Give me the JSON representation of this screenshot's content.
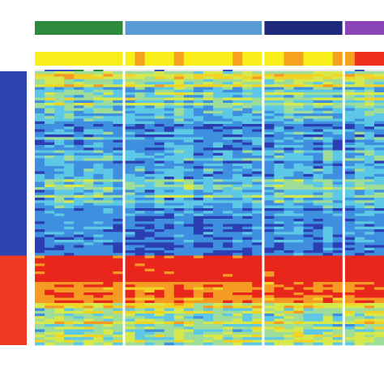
{
  "chart_data": {
    "type": "heatmap",
    "title": "",
    "xlabel": "",
    "ylabel": "",
    "legend": false,
    "colormap": [
      "#2b3fb3",
      "#3f8fe0",
      "#5cc8e6",
      "#9edc9a",
      "#d6e84a",
      "#f2d224",
      "#f59a22",
      "#e8261c"
    ],
    "value_range": [
      0,
      1
    ],
    "column_groups": [
      {
        "color": "#2e8a3c",
        "columns": 9
      },
      {
        "color": "#5b9bd5",
        "columns": 14
      },
      {
        "color": "#1f2a7a",
        "columns": 8
      },
      {
        "color": "#8a45b8",
        "columns": 4
      }
    ],
    "annotation_tracks": [
      {
        "values": [
          "#2e8a3c",
          "#2e8a3c",
          "#2e8a3c",
          "#2e8a3c",
          "#2e8a3c",
          "#2e8a3c",
          "#2e8a3c",
          "#2e8a3c",
          "#2e8a3c",
          "#5b9bd5",
          "#5b9bd5",
          "#5b9bd5",
          "#5b9bd5",
          "#5b9bd5",
          "#5b9bd5",
          "#5b9bd5",
          "#5b9bd5",
          "#5b9bd5",
          "#5b9bd5",
          "#5b9bd5",
          "#5b9bd5",
          "#5b9bd5",
          "#5b9bd5",
          "#1f2a7a",
          "#1f2a7a",
          "#1f2a7a",
          "#1f2a7a",
          "#1f2a7a",
          "#1f2a7a",
          "#1f2a7a",
          "#1f2a7a",
          "#8a45b8",
          "#8a45b8",
          "#8a45b8",
          "#8a45b8"
        ]
      },
      {
        "values": [
          "#f7ee1a",
          "#f7ee1a",
          "#f7ee1a",
          "#f7ee1a",
          "#f7ee1a",
          "#f7ee1a",
          "#f7ee1a",
          "#f7ee1a",
          "#f7ee1a",
          "#f7ee1a",
          "#f5a31e",
          "#f7ee1a",
          "#f7ee1a",
          "#f7ee1a",
          "#f5a31e",
          "#f7ee1a",
          "#f7ee1a",
          "#f7ee1a",
          "#f7ee1a",
          "#f7ee1a",
          "#f5a31e",
          "#f7ee1a",
          "#f7ee1a",
          "#f7ee1a",
          "#f7ee1a",
          "#f5a31e",
          "#f5a31e",
          "#f7ee1a",
          "#f7ee1a",
          "#f7ee1a",
          "#f5a31e",
          "#f5a31e",
          "#f0301c",
          "#f0301c",
          "#f0301c"
        ]
      },
      {
        "values": [
          "#e8e8e8",
          "#3a4fbf",
          "#3a4fbf",
          "#3a4fbf",
          "#2e8a3c",
          "#e8e8e8",
          "#2e8a3c",
          "#e8e8e8",
          "#e8e8e8",
          "#e8e8e8",
          "#e8e8e8",
          "#e8e8e8",
          "#3a4fbf",
          "#e8e8e8",
          "#e8e8e8",
          "#e8e8e8",
          "#e8e8e8",
          "#e8e8e8",
          "#e8e8e8",
          "#3a4fbf",
          "#e8e8e8",
          "#e8e8e8",
          "#e8e8e8",
          "#e8e8e8",
          "#e8e8e8",
          "#e8e8e8",
          "#e8e8e8",
          "#e8e8e8",
          "#e8e8e8",
          "#e8e8e8",
          "#e8e8e8",
          "#e8e8e8",
          "#3a4fbf",
          "#e8e8e8",
          "#e8e8e8"
        ]
      }
    ],
    "row_groups": [
      {
        "color": "#2c45b0",
        "rows": 70
      },
      {
        "color": "#ee3a22",
        "rows": 34
      }
    ],
    "row_band_profile": [
      {
        "rows": 6,
        "level": 0.55,
        "spread": 0.25
      },
      {
        "rows": 10,
        "level": 0.42,
        "spread": 0.28
      },
      {
        "rows": 24,
        "level": 0.22,
        "spread": 0.22
      },
      {
        "rows": 10,
        "level": 0.32,
        "spread": 0.24
      },
      {
        "rows": 20,
        "level": 0.2,
        "spread": 0.18
      },
      {
        "rows": 10,
        "level": 0.95,
        "spread": 0.08
      },
      {
        "rows": 8,
        "level": 0.82,
        "spread": 0.14
      },
      {
        "rows": 16,
        "level": 0.5,
        "spread": 0.3
      }
    ]
  }
}
